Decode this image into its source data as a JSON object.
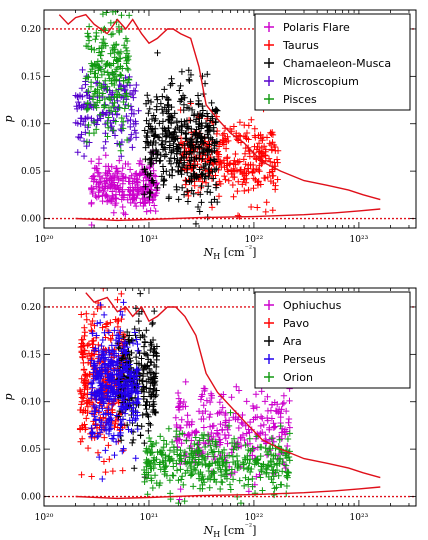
{
  "chart_data": [
    {
      "type": "scatter",
      "xscale": "log",
      "xlim": [
        1e+20,
        3.5e+23
      ],
      "ylim": [
        -0.01,
        0.22
      ],
      "xlabel": "N_H [cm^-2]",
      "ylabel": "p",
      "x_ticks": [
        "10^20",
        "10^21",
        "10^22",
        "10^23"
      ],
      "y_ticks": [
        "0.00",
        "0.05",
        "0.10",
        "0.15",
        "0.20"
      ],
      "legend_position": "top-right",
      "reference_lines": [
        0.0,
        0.2
      ],
      "envelope": {
        "upper": [
          [
            1.4e+20,
            0.215
          ],
          [
            1.7e+20,
            0.205
          ],
          [
            2e+20,
            0.212
          ],
          [
            2.5e+20,
            0.215
          ],
          [
            3e+20,
            0.205
          ],
          [
            4e+20,
            0.195
          ],
          [
            5e+20,
            0.21
          ],
          [
            6e+20,
            0.2
          ],
          [
            7e+20,
            0.21
          ],
          [
            8.5e+20,
            0.195
          ],
          [
            1e+21,
            0.185
          ],
          [
            1.2e+21,
            0.19
          ],
          [
            1.5e+21,
            0.2
          ],
          [
            1.7e+21,
            0.2
          ],
          [
            2e+21,
            0.195
          ],
          [
            2.5e+21,
            0.19
          ],
          [
            3e+21,
            0.16
          ],
          [
            3.5e+21,
            0.12
          ],
          [
            4.5e+21,
            0.105
          ],
          [
            6e+21,
            0.09
          ],
          [
            8e+21,
            0.08
          ],
          [
            1.2e+22,
            0.06
          ],
          [
            1.8e+22,
            0.05
          ],
          [
            3e+22,
            0.04
          ],
          [
            5e+22,
            0.035
          ],
          [
            8e+22,
            0.03
          ],
          [
            1.1e+23,
            0.025
          ],
          [
            1.6e+23,
            0.02
          ]
        ],
        "lower": [
          [
            2e+20,
            0.0
          ],
          [
            5e+20,
            -0.002
          ],
          [
            1e+21,
            -0.001
          ],
          [
            3e+21,
            0.001
          ],
          [
            1e+22,
            0.002
          ],
          [
            3e+22,
            0.004
          ],
          [
            6e+22,
            0.006
          ],
          [
            1e+23,
            0.008
          ],
          [
            1.6e+23,
            0.01
          ]
        ]
      },
      "series": [
        {
          "name": "Polaris Flare",
          "color": "#cc00cc",
          "x_range": [
            2.8e+20,
            1.2e+21
          ],
          "y_mean": 0.035,
          "y_sd": 0.012,
          "count": 260,
          "points": [
            [
              3e+20,
              0.045
            ],
            [
              4e+20,
              0.04
            ],
            [
              5e+20,
              0.035
            ],
            [
              7e+20,
              0.03
            ],
            [
              9e+20,
              0.025
            ],
            [
              1.1e+21,
              0.02
            ]
          ]
        },
        {
          "name": "Taurus",
          "color": "#ff0000",
          "x_range": [
            2e+21,
            1.7e+22
          ],
          "y_mean": 0.06,
          "y_sd": 0.02,
          "count": 320,
          "points": [
            [
              3e+21,
              0.09
            ],
            [
              5e+21,
              0.08
            ],
            [
              7e+21,
              0.06
            ],
            [
              1e+22,
              0.05
            ],
            [
              1.5e+22,
              0.045
            ]
          ]
        },
        {
          "name": "Chamaeleon-Musca",
          "color": "#000000",
          "x_range": [
            9e+20,
            4.5e+21
          ],
          "y_mean": 0.08,
          "y_sd": 0.03,
          "count": 420,
          "points": [
            [
              1e+21,
              0.1
            ],
            [
              1.5e+21,
              0.12
            ],
            [
              2e+21,
              0.14
            ],
            [
              3e+21,
              0.1
            ],
            [
              4e+21,
              0.07
            ]
          ]
        },
        {
          "name": "Microscopium",
          "color": "#5500cc",
          "x_range": [
            2e+20,
            8e+20
          ],
          "y_mean": 0.11,
          "y_sd": 0.022,
          "count": 150,
          "points": [
            [
              2.2e+20,
              0.13
            ],
            [
              3e+20,
              0.12
            ],
            [
              4.5e+20,
              0.11
            ],
            [
              6e+20,
              0.12
            ],
            [
              7.5e+20,
              0.1
            ]
          ]
        },
        {
          "name": "Pisces",
          "color": "#119911",
          "x_range": [
            2.5e+20,
            6.5e+20
          ],
          "y_mean": 0.15,
          "y_sd": 0.03,
          "count": 200,
          "points": [
            [
              2.7e+20,
              0.09
            ],
            [
              3.5e+20,
              0.14
            ],
            [
              4.5e+20,
              0.18
            ],
            [
              5.5e+20,
              0.2
            ],
            [
              6e+20,
              0.17
            ]
          ]
        }
      ]
    },
    {
      "type": "scatter",
      "xscale": "log",
      "xlim": [
        1e+20,
        3.5e+23
      ],
      "ylim": [
        -0.01,
        0.22
      ],
      "xlabel": "N_H [cm^-2]",
      "ylabel": "p",
      "x_ticks": [
        "10^20",
        "10^21",
        "10^22",
        "10^23"
      ],
      "y_ticks": [
        "0.00",
        "0.05",
        "0.10",
        "0.15",
        "0.20"
      ],
      "legend_position": "top-right",
      "reference_lines": [
        0.0,
        0.2
      ],
      "envelope": {
        "upper": [
          [
            2.5e+20,
            0.215
          ],
          [
            3e+20,
            0.205
          ],
          [
            4e+20,
            0.21
          ],
          [
            5e+20,
            0.195
          ],
          [
            6e+20,
            0.2
          ],
          [
            7e+20,
            0.19
          ],
          [
            8.5e+20,
            0.2
          ],
          [
            1e+21,
            0.185
          ],
          [
            1.2e+21,
            0.19
          ],
          [
            1.5e+21,
            0.2
          ],
          [
            1.8e+21,
            0.2
          ],
          [
            2.2e+21,
            0.19
          ],
          [
            2.8e+21,
            0.17
          ],
          [
            3.5e+21,
            0.13
          ],
          [
            4.5e+21,
            0.11
          ],
          [
            6e+21,
            0.095
          ],
          [
            8e+21,
            0.08
          ],
          [
            1.2e+22,
            0.06
          ],
          [
            1.8e+22,
            0.05
          ],
          [
            3e+22,
            0.04
          ],
          [
            5e+22,
            0.035
          ],
          [
            8e+22,
            0.03
          ],
          [
            1.1e+23,
            0.025
          ],
          [
            1.6e+23,
            0.02
          ]
        ],
        "lower": [
          [
            2e+20,
            0.0
          ],
          [
            5e+20,
            -0.002
          ],
          [
            1e+21,
            -0.001
          ],
          [
            3e+21,
            0.001
          ],
          [
            1e+22,
            0.002
          ],
          [
            3e+22,
            0.004
          ],
          [
            6e+22,
            0.006
          ],
          [
            1e+23,
            0.008
          ],
          [
            1.6e+23,
            0.01
          ]
        ]
      },
      "series": [
        {
          "name": "Ophiuchus",
          "color": "#cc00cc",
          "x_range": [
            1.8e+21,
            2.2e+22
          ],
          "y_mean": 0.07,
          "y_sd": 0.022,
          "count": 260,
          "points": [
            [
              2e+21,
              0.1
            ],
            [
              3e+21,
              0.09
            ],
            [
              5e+21,
              0.07
            ],
            [
              1e+22,
              0.05
            ],
            [
              2e+22,
              0.03
            ]
          ]
        },
        {
          "name": "Pavo",
          "color": "#ff0000",
          "x_range": [
            2.2e+20,
            6e+20
          ],
          "y_mean": 0.12,
          "y_sd": 0.04,
          "count": 320,
          "points": [
            [
              2.3e+20,
              0.1
            ],
            [
              3e+20,
              0.15
            ],
            [
              3.5e+20,
              0.2
            ],
            [
              4.5e+20,
              0.17
            ],
            [
              5.5e+20,
              0.13
            ]
          ]
        },
        {
          "name": "Ara",
          "color": "#000000",
          "x_range": [
            5e+20,
            1.2e+21
          ],
          "y_mean": 0.12,
          "y_sd": 0.03,
          "count": 260,
          "points": [
            [
              6e+20,
              0.15
            ],
            [
              8e+20,
              0.13
            ],
            [
              1e+21,
              0.11
            ],
            [
              1.1e+21,
              0.1
            ]
          ]
        },
        {
          "name": "Perseus",
          "color": "#2200ee",
          "x_range": [
            2.8e+20,
            8e+20
          ],
          "y_mean": 0.12,
          "y_sd": 0.03,
          "count": 380,
          "points": [
            [
              3e+20,
              0.14
            ],
            [
              4e+20,
              0.13
            ],
            [
              5e+20,
              0.12
            ],
            [
              6e+20,
              0.11
            ],
            [
              7e+20,
              0.09
            ]
          ]
        },
        {
          "name": "Orion",
          "color": "#119911",
          "x_range": [
            9e+20,
            2.2e+22
          ],
          "y_mean": 0.035,
          "y_sd": 0.015,
          "count": 380,
          "points": [
            [
              1e+21,
              0.05
            ],
            [
              2e+21,
              0.04
            ],
            [
              4e+21,
              0.035
            ],
            [
              8e+21,
              0.03
            ],
            [
              1.5e+22,
              0.025
            ]
          ]
        }
      ]
    }
  ]
}
